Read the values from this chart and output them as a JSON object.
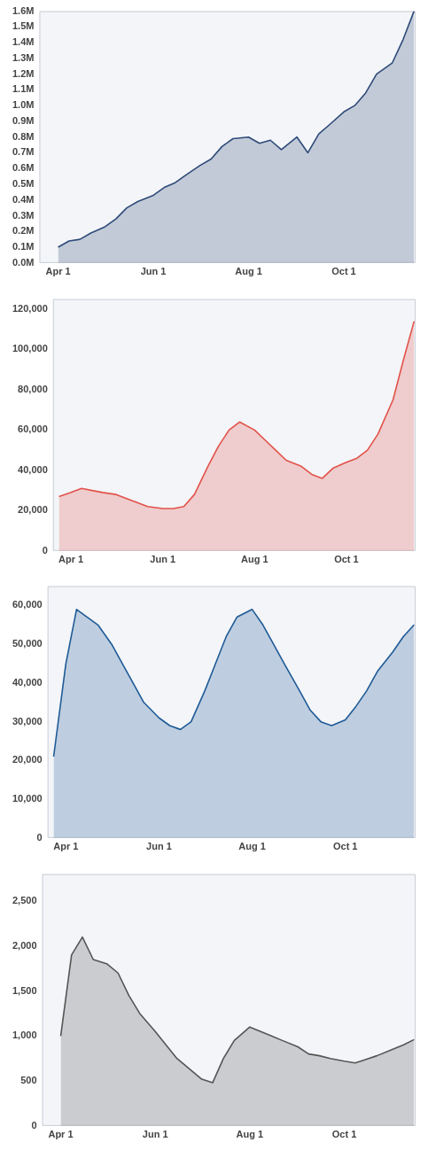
{
  "chart_data": [
    {
      "type": "area",
      "series": [
        {
          "color": "#2e4a78",
          "x": [
            "--04-01",
            "--04-08",
            "--04-15",
            "--04-22",
            "--05-01",
            "--05-08",
            "--05-15",
            "--05-22",
            "--06-01",
            "--06-08",
            "--06-15",
            "--06-22",
            "--07-01",
            "--07-08",
            "--07-15",
            "--07-22",
            "--08-01",
            "--08-08",
            "--08-15",
            "--08-22",
            "--09-01",
            "--09-08",
            "--09-15",
            "--09-22",
            "--10-01",
            "--10-08",
            "--10-15",
            "--10-22",
            "--11-01",
            "--11-08",
            "--11-15"
          ],
          "values": [
            100000,
            140000,
            150000,
            190000,
            230000,
            280000,
            350000,
            390000,
            430000,
            480000,
            510000,
            560000,
            620000,
            660000,
            740000,
            790000,
            800000,
            760000,
            780000,
            720000,
            800000,
            700000,
            820000,
            880000,
            960000,
            1000000,
            1080000,
            1200000,
            1270000,
            1420000,
            1600000
          ]
        }
      ],
      "xlim": [
        "--03-20",
        "--11-16"
      ],
      "xticks": [
        {
          "value": "--04-01",
          "label": "Apr 1"
        },
        {
          "value": "--06-01",
          "label": "Jun 1"
        },
        {
          "value": "--08-01",
          "label": "Aug 1"
        },
        {
          "value": "--10-01",
          "label": "Oct 1"
        }
      ],
      "ylim": [
        0,
        1600000
      ],
      "yticks": [
        {
          "value": 0,
          "label": "0.0M"
        },
        {
          "value": 100000,
          "label": "0.1M"
        },
        {
          "value": 200000,
          "label": "0.2M"
        },
        {
          "value": 300000,
          "label": "0.3M"
        },
        {
          "value": 400000,
          "label": "0.4M"
        },
        {
          "value": 500000,
          "label": "0.5M"
        },
        {
          "value": 600000,
          "label": "0.6M"
        },
        {
          "value": 700000,
          "label": "0.7M"
        },
        {
          "value": 800000,
          "label": "0.8M"
        },
        {
          "value": 900000,
          "label": "0.9M"
        },
        {
          "value": 1000000,
          "label": "1.0M"
        },
        {
          "value": 1100000,
          "label": "1.1M"
        },
        {
          "value": 1200000,
          "label": "1.2M"
        },
        {
          "value": 1300000,
          "label": "1.3M"
        },
        {
          "value": 1400000,
          "label": "1.4M"
        },
        {
          "value": 1500000,
          "label": "1.5M"
        },
        {
          "value": 1600000,
          "label": "1.6M"
        }
      ]
    },
    {
      "type": "area",
      "x": [
        "--03-24",
        "--04-01",
        "--04-08",
        "--04-15",
        "--04-22",
        "--05-01",
        "--05-08",
        "--05-15",
        "--05-22",
        "--06-01",
        "--06-08",
        "--06-15",
        "--06-22",
        "--07-01",
        "--07-08",
        "--07-15",
        "--07-22",
        "--08-01",
        "--08-08",
        "--08-15",
        "--08-22",
        "--09-01",
        "--09-08",
        "--09-15",
        "--09-22",
        "--10-01",
        "--10-08",
        "--10-15",
        "--10-22",
        "--11-01",
        "--11-08",
        "--11-15"
      ],
      "series": [
        {
          "color": "#e2524a",
          "values": [
            27000,
            29000,
            31000,
            30000,
            29000,
            28000,
            26000,
            24000,
            22000,
            21000,
            21000,
            22000,
            28000,
            42000,
            52000,
            60000,
            64000,
            60000,
            55000,
            50000,
            45000,
            42000,
            38000,
            36000,
            41000,
            44000,
            46000,
            50000,
            58000,
            75000,
            95000,
            114000
          ]
        }
      ],
      "xlim": [
        "--03-20",
        "--11-16"
      ],
      "xticks": [
        {
          "value": "--04-01",
          "label": "Apr 1"
        },
        {
          "value": "--06-01",
          "label": "Jun 1"
        },
        {
          "value": "--08-01",
          "label": "Aug 1"
        },
        {
          "value": "--10-01",
          "label": "Oct 1"
        }
      ],
      "ylim": [
        0,
        125000
      ],
      "yticks": [
        {
          "value": 0,
          "label": "0"
        },
        {
          "value": 20000,
          "label": "20,000"
        },
        {
          "value": 40000,
          "label": "40,000"
        },
        {
          "value": 60000,
          "label": "60,000"
        },
        {
          "value": 80000,
          "label": "80,000"
        },
        {
          "value": 100000,
          "label": "100,000"
        },
        {
          "value": 120000,
          "label": "120,000"
        }
      ]
    },
    {
      "type": "area",
      "x": [
        "--03-24",
        "--04-01",
        "--04-08",
        "--04-15",
        "--04-22",
        "--05-01",
        "--05-08",
        "--05-15",
        "--05-22",
        "--06-01",
        "--06-08",
        "--06-15",
        "--06-22",
        "--07-01",
        "--07-08",
        "--07-15",
        "--07-22",
        "--08-01",
        "--08-08",
        "--08-15",
        "--08-22",
        "--09-01",
        "--09-08",
        "--09-15",
        "--09-22",
        "--10-01",
        "--10-08",
        "--10-15",
        "--10-22",
        "--11-01",
        "--11-08",
        "--11-15"
      ],
      "series": [
        {
          "color": "#1f5a96",
          "values": [
            21000,
            45000,
            59000,
            57000,
            55000,
            50000,
            45000,
            40000,
            35000,
            31000,
            29000,
            28000,
            30000,
            38000,
            45000,
            52000,
            57000,
            59000,
            55000,
            50000,
            45000,
            38000,
            33000,
            30000,
            29000,
            30500,
            34000,
            38000,
            43000,
            48000,
            52000,
            55000
          ]
        }
      ],
      "xlim": [
        "--03-20",
        "--11-16"
      ],
      "xticks": [
        {
          "value": "--04-01",
          "label": "Apr 1"
        },
        {
          "value": "--06-01",
          "label": "Jun 1"
        },
        {
          "value": "--08-01",
          "label": "Aug 1"
        },
        {
          "value": "--10-01",
          "label": "Oct 1"
        }
      ],
      "ylim": [
        0,
        65000
      ],
      "yticks": [
        {
          "value": 0,
          "label": "0"
        },
        {
          "value": 10000,
          "label": "10,000"
        },
        {
          "value": 20000,
          "label": "20,000"
        },
        {
          "value": 30000,
          "label": "30,000"
        },
        {
          "value": 40000,
          "label": "40,000"
        },
        {
          "value": 50000,
          "label": "50,000"
        },
        {
          "value": 60000,
          "label": "60,000"
        }
      ]
    },
    {
      "type": "area",
      "series": [
        {
          "color": "#555555",
          "x": [
            "--04-01",
            "--04-08",
            "--04-15",
            "--04-22",
            "--05-01",
            "--05-08",
            "--05-15",
            "--05-22",
            "--06-01",
            "--06-08",
            "--06-15",
            "--06-22",
            "--07-01",
            "--07-08",
            "--07-15",
            "--07-22",
            "--08-01",
            "--08-08",
            "--08-15",
            "--08-22",
            "--09-01",
            "--09-08",
            "--09-15",
            "--09-22",
            "--10-01",
            "--10-08",
            "--10-15",
            "--10-22",
            "--11-01",
            "--11-08",
            "--11-15"
          ],
          "values": [
            1000,
            1900,
            2100,
            1850,
            1800,
            1700,
            1450,
            1250,
            1050,
            900,
            750,
            650,
            520,
            480,
            750,
            950,
            1100,
            1050,
            1000,
            950,
            880,
            800,
            780,
            750,
            720,
            700,
            740,
            780,
            850,
            900,
            960
          ]
        }
      ],
      "xlim": [
        "--03-20",
        "--11-16"
      ],
      "xticks": [
        {
          "value": "--04-01",
          "label": "Apr 1"
        },
        {
          "value": "--06-01",
          "label": "Jun 1"
        },
        {
          "value": "--08-01",
          "label": "Aug 1"
        },
        {
          "value": "--10-01",
          "label": "Oct 1"
        }
      ],
      "ylim": [
        0,
        2800
      ],
      "yticks": [
        {
          "value": 0,
          "label": "0"
        },
        {
          "value": 500,
          "label": "500"
        },
        {
          "value": 1000,
          "label": "1,000"
        },
        {
          "value": 1500,
          "label": "1,500"
        },
        {
          "value": 2000,
          "label": "2,000"
        },
        {
          "value": 2500,
          "label": "2,500"
        }
      ]
    }
  ]
}
